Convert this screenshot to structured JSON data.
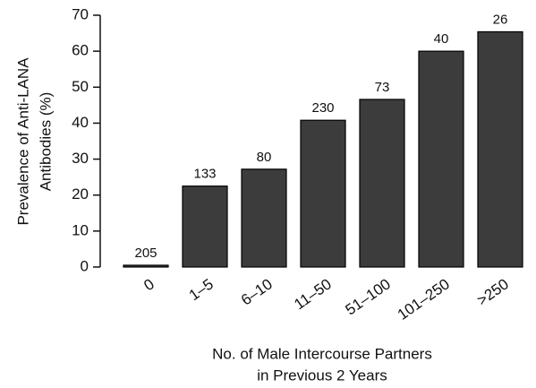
{
  "chart_data": {
    "type": "bar",
    "ylabel": [
      "Prevalence of Anti-LANA",
      "Antibodies (%)"
    ],
    "xlabel": [
      "No. of Male Intercourse Partners",
      "in Previous 2 Years"
    ],
    "categories": [
      "0",
      "1–5",
      "6–10",
      "11–50",
      "51–100",
      "101–250",
      ">250"
    ],
    "values": [
      0.5,
      22.5,
      27.2,
      40.8,
      46.6,
      60,
      65.4
    ],
    "annotations": [
      205,
      133,
      80,
      230,
      73,
      40,
      26
    ],
    "color": "#3c3c3c",
    "ylim": [
      0,
      70
    ],
    "yticks": [
      0,
      10,
      20,
      30,
      40,
      50,
      60,
      70
    ],
    "grid": false
  }
}
